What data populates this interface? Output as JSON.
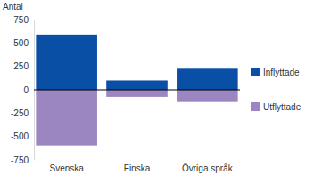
{
  "chart_data": {
    "type": "bar",
    "stacked": true,
    "ylabel": "Antal",
    "categories": [
      "Svenska",
      "Finska",
      "Övriga språk"
    ],
    "series": [
      {
        "name": "Inflyttade",
        "color": "#0a4fa6",
        "values": [
          590,
          100,
          225
        ]
      },
      {
        "name": "Utflyttade",
        "color": "#9b86c2",
        "values": [
          -595,
          -75,
          -130
        ]
      }
    ],
    "ylim": [
      -750,
      750
    ],
    "yticks": [
      -750,
      -500,
      -250,
      0,
      250,
      500,
      750
    ],
    "grid": false,
    "legend": "right"
  }
}
